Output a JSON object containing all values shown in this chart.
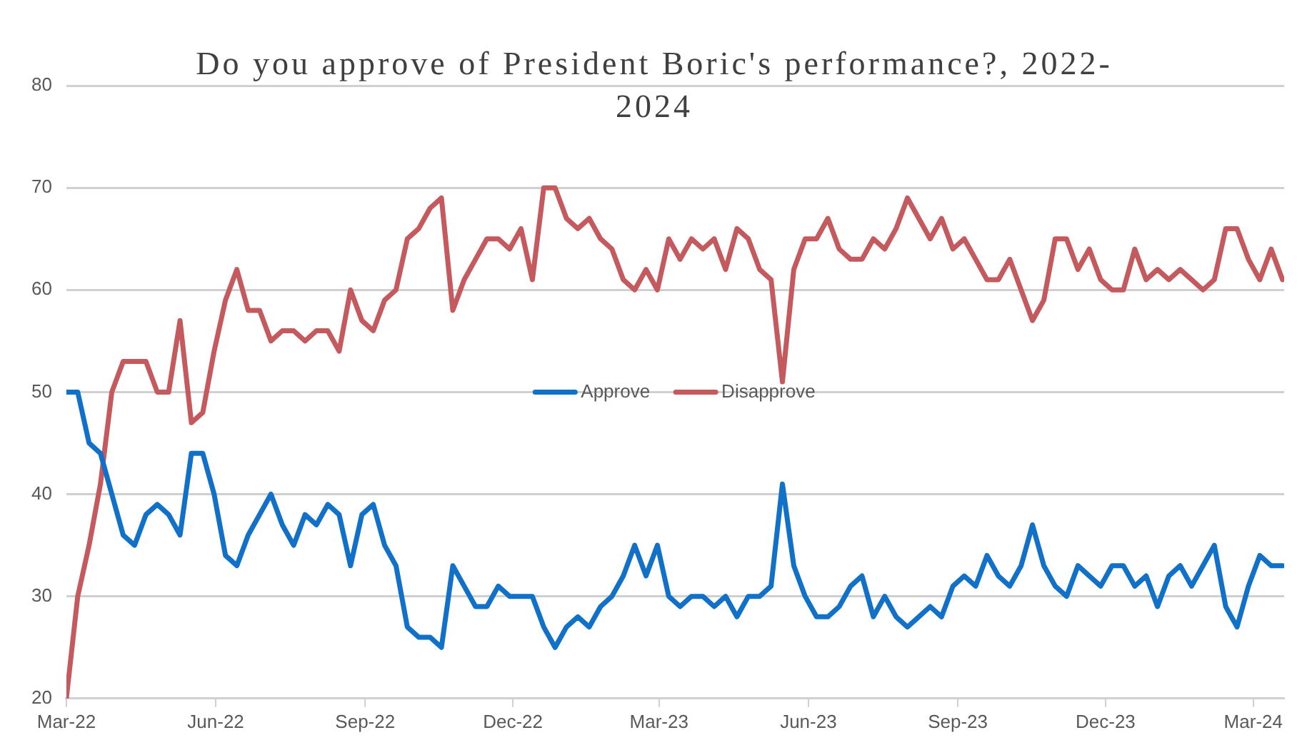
{
  "chart_data": {
    "type": "line",
    "title": "Do you approve of President Boric's performance?, 2022-2024",
    "x": [
      "2022-03-01",
      "2022-03-08",
      "2022-03-15",
      "2022-03-22",
      "2022-03-29",
      "2022-04-05",
      "2022-04-12",
      "2022-04-19",
      "2022-04-26",
      "2022-05-03",
      "2022-05-10",
      "2022-05-17",
      "2022-05-24",
      "2022-05-31",
      "2022-06-07",
      "2022-06-14",
      "2022-06-21",
      "2022-06-28",
      "2022-07-05",
      "2022-07-12",
      "2022-07-19",
      "2022-07-26",
      "2022-08-02",
      "2022-08-09",
      "2022-08-16",
      "2022-08-23",
      "2022-08-30",
      "2022-09-06",
      "2022-09-13",
      "2022-09-20",
      "2022-09-27",
      "2022-10-04",
      "2022-10-11",
      "2022-10-18",
      "2022-10-25",
      "2022-11-01",
      "2022-11-08",
      "2022-11-15",
      "2022-11-22",
      "2022-11-29",
      "2022-12-06",
      "2022-12-13",
      "2022-12-20",
      "2022-12-27",
      "2023-01-03",
      "2023-01-10",
      "2023-01-17",
      "2023-01-24",
      "2023-01-31",
      "2023-02-07",
      "2023-02-14",
      "2023-02-21",
      "2023-02-28",
      "2023-03-07",
      "2023-03-14",
      "2023-03-21",
      "2023-03-28",
      "2023-04-04",
      "2023-04-11",
      "2023-04-18",
      "2023-04-25",
      "2023-05-02",
      "2023-05-09",
      "2023-05-16",
      "2023-05-23",
      "2023-05-30",
      "2023-06-06",
      "2023-06-13",
      "2023-06-20",
      "2023-06-27",
      "2023-07-04",
      "2023-07-11",
      "2023-07-18",
      "2023-07-25",
      "2023-08-01",
      "2023-08-08",
      "2023-08-15",
      "2023-08-22",
      "2023-08-29",
      "2023-09-05",
      "2023-09-12",
      "2023-09-19",
      "2023-09-26",
      "2023-10-03",
      "2023-10-10",
      "2023-10-17",
      "2023-10-24",
      "2023-10-31",
      "2023-11-07",
      "2023-11-14",
      "2023-11-21",
      "2023-11-28",
      "2023-12-05",
      "2023-12-12",
      "2023-12-19",
      "2023-12-26",
      "2024-01-02",
      "2024-01-09",
      "2024-01-16",
      "2024-01-23",
      "2024-01-30",
      "2024-02-06",
      "2024-02-13",
      "2024-02-20",
      "2024-02-27",
      "2024-03-05",
      "2024-03-12",
      "2024-03-19"
    ],
    "series": [
      {
        "name": "Approve",
        "color": "#1170c8",
        "values": [
          50,
          50,
          45,
          44,
          40,
          36,
          35,
          38,
          39,
          38,
          36,
          44,
          44,
          40,
          34,
          33,
          36,
          38,
          40,
          37,
          35,
          38,
          37,
          39,
          38,
          33,
          38,
          39,
          35,
          33,
          27,
          26,
          26,
          25,
          33,
          31,
          29,
          29,
          31,
          30,
          30,
          30,
          27,
          25,
          27,
          28,
          27,
          29,
          30,
          32,
          35,
          32,
          35,
          30,
          29,
          30,
          30,
          29,
          30,
          28,
          30,
          30,
          31,
          41,
          33,
          30,
          28,
          28,
          29,
          31,
          32,
          28,
          30,
          28,
          27,
          28,
          29,
          28,
          31,
          32,
          31,
          34,
          32,
          31,
          33,
          37,
          33,
          31,
          30,
          33,
          32,
          31,
          33,
          33,
          31,
          32,
          29,
          32,
          33,
          31,
          33,
          35,
          29,
          27,
          31,
          34,
          33,
          33
        ]
      },
      {
        "name": "Disapprove",
        "color": "#c55a5e",
        "values": [
          20,
          30,
          35,
          41,
          50,
          53,
          53,
          53,
          50,
          50,
          57,
          47,
          48,
          54,
          59,
          62,
          58,
          58,
          55,
          56,
          56,
          55,
          56,
          56,
          54,
          60,
          57,
          56,
          59,
          60,
          65,
          66,
          68,
          69,
          58,
          61,
          63,
          65,
          65,
          64,
          66,
          61,
          70,
          70,
          67,
          66,
          67,
          65,
          64,
          61,
          60,
          62,
          60,
          65,
          63,
          65,
          64,
          65,
          62,
          66,
          65,
          62,
          61,
          51,
          62,
          65,
          65,
          67,
          64,
          63,
          63,
          65,
          64,
          66,
          69,
          67,
          65,
          67,
          64,
          65,
          63,
          61,
          61,
          63,
          60,
          57,
          59,
          65,
          65,
          62,
          64,
          61,
          60,
          60,
          64,
          61,
          62,
          61,
          62,
          61,
          60,
          61,
          66,
          66,
          63,
          61,
          64,
          61
        ]
      }
    ],
    "xlim": [
      "2022-03-01",
      "2024-03-20"
    ],
    "xticks": [
      {
        "value": "2022-03-01",
        "label": "Mar-22"
      },
      {
        "value": "2022-06-01",
        "label": "Jun-22"
      },
      {
        "value": "2022-09-01",
        "label": "Sep-22"
      },
      {
        "value": "2022-12-01",
        "label": "Dec-22"
      },
      {
        "value": "2023-03-01",
        "label": "Mar-23"
      },
      {
        "value": "2023-06-01",
        "label": "Jun-23"
      },
      {
        "value": "2023-09-01",
        "label": "Sep-23"
      },
      {
        "value": "2023-12-01",
        "label": "Dec-23"
      },
      {
        "value": "2024-03-01",
        "label": "Mar-24"
      }
    ],
    "ylim": [
      20,
      80
    ],
    "yticks": [
      20,
      30,
      40,
      50,
      60,
      70,
      80
    ],
    "grid": "y",
    "legend": "center",
    "marker": "none",
    "line_style": "solid"
  }
}
